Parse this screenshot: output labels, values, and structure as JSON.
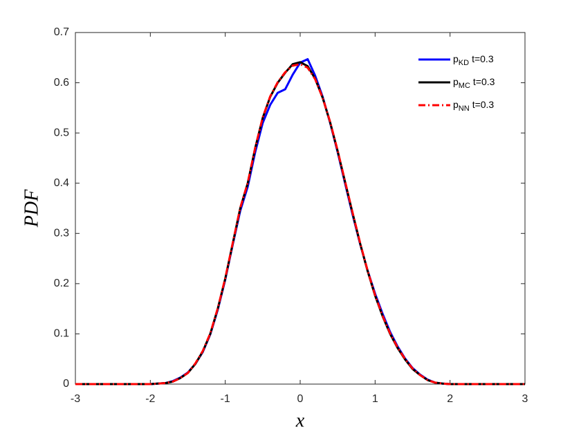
{
  "chart_data": {
    "type": "line",
    "xlabel": "x",
    "ylabel": "PDF",
    "x": [
      -3,
      -2.5,
      -2,
      -1.9,
      -1.8,
      -1.7,
      -1.6,
      -1.5,
      -1.4,
      -1.3,
      -1.2,
      -1.1,
      -1,
      -0.9,
      -0.8,
      -0.7,
      -0.6,
      -0.5,
      -0.4,
      -0.3,
      -0.2,
      -0.1,
      0,
      0.1,
      0.2,
      0.3,
      0.4,
      0.5,
      0.6,
      0.7,
      0.8,
      0.9,
      1,
      1.1,
      1.2,
      1.3,
      1.4,
      1.5,
      1.6,
      1.7,
      1.8,
      1.9,
      2,
      2.5,
      3
    ],
    "series": [
      {
        "name": [
          "p",
          "KD",
          "t=0.3"
        ],
        "color": "#0000ff",
        "dash": "solid",
        "values": [
          0,
          0,
          0,
          0.001,
          0.002,
          0.006,
          0.013,
          0.023,
          0.04,
          0.064,
          0.099,
          0.148,
          0.208,
          0.278,
          0.345,
          0.393,
          0.462,
          0.52,
          0.556,
          0.58,
          0.587,
          0.616,
          0.64,
          0.647,
          0.614,
          0.572,
          0.52,
          0.462,
          0.399,
          0.337,
          0.279,
          0.226,
          0.18,
          0.14,
          0.104,
          0.075,
          0.051,
          0.032,
          0.019,
          0.009,
          0.003,
          0.001,
          0,
          0,
          0
        ]
      },
      {
        "name": [
          "p",
          "MC",
          "t=0.3"
        ],
        "color": "#000000",
        "dash": "solid",
        "values": [
          0,
          0,
          0,
          0.001,
          0.002,
          0.005,
          0.012,
          0.022,
          0.04,
          0.065,
          0.1,
          0.15,
          0.21,
          0.28,
          0.35,
          0.4,
          0.47,
          0.53,
          0.572,
          0.6,
          0.62,
          0.637,
          0.641,
          0.633,
          0.608,
          0.57,
          0.521,
          0.464,
          0.402,
          0.34,
          0.28,
          0.225,
          0.176,
          0.135,
          0.1,
          0.072,
          0.049,
          0.03,
          0.018,
          0.008,
          0.003,
          0.001,
          0,
          0,
          0
        ]
      },
      {
        "name": [
          "p",
          "NN",
          "t=0.3"
        ],
        "color": "#ff0000",
        "dash": "dashdot",
        "values": [
          0,
          0,
          0,
          0.001,
          0.002,
          0.005,
          0.012,
          0.022,
          0.041,
          0.066,
          0.101,
          0.151,
          0.211,
          0.281,
          0.351,
          0.401,
          0.471,
          0.531,
          0.573,
          0.601,
          0.621,
          0.634,
          0.637,
          0.63,
          0.607,
          0.57,
          0.522,
          0.465,
          0.403,
          0.341,
          0.281,
          0.226,
          0.177,
          0.136,
          0.101,
          0.073,
          0.05,
          0.031,
          0.018,
          0.008,
          0.003,
          0.001,
          0,
          0,
          0
        ]
      }
    ],
    "xlim": [
      -3,
      3
    ],
    "ylim": [
      0,
      0.7
    ],
    "xticks": [
      -3,
      -2,
      -1,
      0,
      1,
      2,
      3
    ],
    "yticks": [
      0,
      0.1,
      0.2,
      0.3,
      0.4,
      0.5,
      0.6,
      0.7
    ],
    "legend": "upper right"
  }
}
